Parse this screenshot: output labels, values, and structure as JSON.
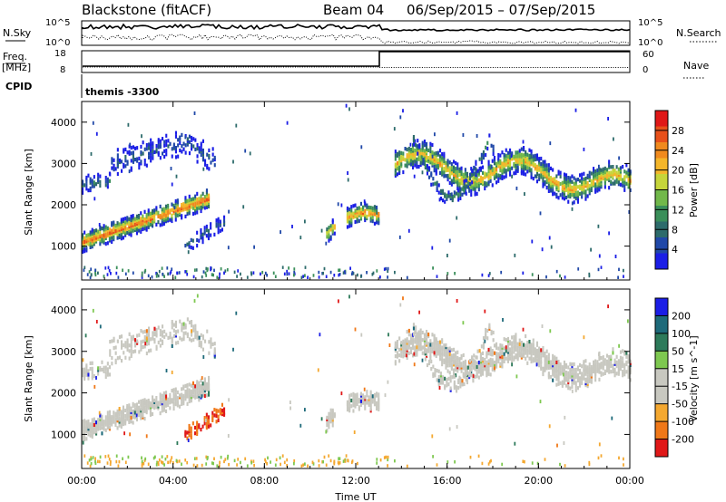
{
  "header": {
    "radar": "Blackstone (fitACF)",
    "beam": "Beam 04",
    "date_range": "06/Sep/2015 – 07/Sep/2015"
  },
  "status_panels": {
    "nsky_label": "N.Sky",
    "nsearch_label": "N.Search",
    "nsky_ticks": [
      "10^5",
      "10^0"
    ],
    "nsearch_ticks": [
      "10^5",
      "10^0"
    ],
    "freq_label": "Freq.",
    "freq_unit": "[MHz]",
    "freq_ticks": [
      "18",
      "8"
    ],
    "nave_label": "Nave",
    "nave_ticks": [
      "60",
      "0"
    ],
    "cpid_label": "CPID",
    "cpid_value": "themis -3300"
  },
  "colors": {
    "power_scale": [
      "#1b1ee6",
      "#2048a8",
      "#2d6b6b",
      "#3a8f5a",
      "#71b84a",
      "#c6d53a",
      "#f4b62a",
      "#f08a1e",
      "#e8501a",
      "#e01818"
    ],
    "velocity_scale": [
      "#e01818",
      "#f07818",
      "#f4a830",
      "#c8c8c0",
      "#c8c8c0",
      "#7ec850",
      "#2d7a5a",
      "#1e6a7a",
      "#1b1ee6"
    ]
  },
  "chart_data": [
    {
      "type": "heatmap",
      "name": "power",
      "ylabel": "Slant Range [km]",
      "xlabel": "Time UT",
      "x_ticks": [
        "00:00",
        "04:00",
        "08:00",
        "12:00",
        "16:00",
        "20:00",
        "00:00"
      ],
      "y_ticks": [
        "1000",
        "2000",
        "3000",
        "4000"
      ],
      "ylim": [
        180,
        4500
      ],
      "xlim_hours": [
        0,
        24
      ],
      "colorbar_label": "Power [dB]",
      "colorbar_ticks": [
        "28",
        "24",
        "20",
        "16",
        "12",
        "8",
        "4"
      ],
      "colorbar_range": [
        0,
        30
      ]
    },
    {
      "type": "heatmap",
      "name": "velocity",
      "ylabel": "Slant Range [km]",
      "xlabel": "Time UT",
      "x_ticks": [
        "00:00",
        "04:00",
        "08:00",
        "12:00",
        "16:00",
        "20:00",
        "00:00"
      ],
      "y_ticks": [
        "1000",
        "2000",
        "3000",
        "4000"
      ],
      "ylim": [
        180,
        4500
      ],
      "colorbar_label": "Velocity [m s^-1]",
      "colorbar_ticks": [
        "200",
        "100",
        "50",
        "15",
        "-15",
        "-50",
        "-100",
        "-200"
      ]
    }
  ]
}
